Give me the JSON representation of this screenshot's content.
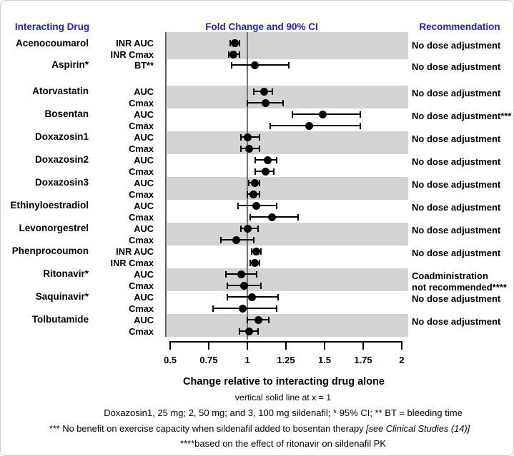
{
  "headers": {
    "interacting_drug": "Interacting Drug",
    "fold_change": "Fold Change and 90% CI",
    "recommendation": "Recommendation"
  },
  "chart_data": {
    "type": "forest",
    "title": "Fold Change and 90% CI",
    "ci_level": "90% CI",
    "x_axis": {
      "label": "Change relative to interacting drug alone",
      "ticks": [
        0.5,
        0.75,
        1,
        1.25,
        1.5,
        1.75,
        2
      ],
      "tick_labels": [
        "0.5",
        "0.75",
        "1",
        "1.25",
        "1.5",
        "1.75",
        "2"
      ],
      "range": [
        0.5,
        2
      ],
      "reference_line_x": 1
    },
    "groups": [
      {
        "drug": "Acenocoumarol",
        "shaded": true,
        "rec_lines": [
          "No dose adjustment"
        ],
        "rows": [
          {
            "param": "INR AUC",
            "value": 0.92,
            "ci_low": 0.89,
            "ci_high": 0.95
          },
          {
            "param": "INR Cmax",
            "value": 0.91,
            "ci_low": 0.88,
            "ci_high": 0.95
          }
        ]
      },
      {
        "drug": "Aspirin*",
        "shaded": false,
        "rec_lines": [
          "No dose adjustment"
        ],
        "rows": [
          {
            "param": "BT**",
            "value": 1.05,
            "ci_low": 0.9,
            "ci_high": 1.27
          }
        ]
      },
      {
        "drug": "Atorvastatin",
        "shaded": true,
        "rec_lines": [
          "No dose adjustment"
        ],
        "rows": [
          {
            "param": "AUC",
            "value": 1.11,
            "ci_low": 1.04,
            "ci_high": 1.16
          },
          {
            "param": "Cmax",
            "value": 1.12,
            "ci_low": 1.0,
            "ci_high": 1.23
          }
        ]
      },
      {
        "drug": "Bosentan",
        "shaded": false,
        "rec_lines": [
          "No dose adjustment***"
        ],
        "rows": [
          {
            "param": "AUC",
            "value": 1.49,
            "ci_low": 1.29,
            "ci_high": 1.73
          },
          {
            "param": "Cmax",
            "value": 1.4,
            "ci_low": 1.15,
            "ci_high": 1.73
          }
        ]
      },
      {
        "drug": "Doxazosin1",
        "shaded": true,
        "rec_lines": [
          "No dose adjustment"
        ],
        "rows": [
          {
            "param": "AUC",
            "value": 1.0,
            "ci_low": 0.96,
            "ci_high": 1.08
          },
          {
            "param": "Cmax",
            "value": 1.01,
            "ci_low": 0.96,
            "ci_high": 1.08
          }
        ]
      },
      {
        "drug": "Doxazosin2",
        "shaded": false,
        "rec_lines": [
          "No dose adjustment"
        ],
        "rows": [
          {
            "param": "AUC",
            "value": 1.13,
            "ci_low": 1.05,
            "ci_high": 1.19
          },
          {
            "param": "Cmax",
            "value": 1.12,
            "ci_low": 1.05,
            "ci_high": 1.17
          }
        ]
      },
      {
        "drug": "Doxazosin3",
        "shaded": true,
        "rec_lines": [
          "No dose adjustment"
        ],
        "rows": [
          {
            "param": "AUC",
            "value": 1.05,
            "ci_low": 1.01,
            "ci_high": 1.08
          },
          {
            "param": "Cmax",
            "value": 1.04,
            "ci_low": 1.0,
            "ci_high": 1.08
          }
        ]
      },
      {
        "drug": "Ethinyloestradiol",
        "shaded": false,
        "rec_lines": [
          "No dose adjustment"
        ],
        "rows": [
          {
            "param": "AUC",
            "value": 1.06,
            "ci_low": 0.94,
            "ci_high": 1.19
          },
          {
            "param": "Cmax",
            "value": 1.16,
            "ci_low": 1.02,
            "ci_high": 1.33
          }
        ]
      },
      {
        "drug": "Levonorgestrel",
        "shaded": true,
        "rec_lines": [
          "No dose adjustment"
        ],
        "rows": [
          {
            "param": "AUC",
            "value": 1.0,
            "ci_low": 0.96,
            "ci_high": 1.07
          },
          {
            "param": "Cmax",
            "value": 0.93,
            "ci_low": 0.83,
            "ci_high": 1.04
          }
        ]
      },
      {
        "drug": "Phenprocoumon",
        "shaded": false,
        "rec_lines": [
          "No dose adjustment"
        ],
        "rows": [
          {
            "param": "INR AUC",
            "value": 1.06,
            "ci_low": 1.03,
            "ci_high": 1.09
          },
          {
            "param": "INR Cmax",
            "value": 1.05,
            "ci_low": 1.02,
            "ci_high": 1.08
          }
        ]
      },
      {
        "drug": "Ritonavir*",
        "shaded": true,
        "rec_lines": [
          "Coadministration",
          "not recommended****"
        ],
        "rows": [
          {
            "param": "AUC",
            "value": 0.96,
            "ci_low": 0.86,
            "ci_high": 1.06
          },
          {
            "param": "Cmax",
            "value": 0.98,
            "ci_low": 0.87,
            "ci_high": 1.09
          }
        ]
      },
      {
        "drug": "Saquinavir*",
        "shaded": false,
        "rec_lines": [
          "No dose adjustment"
        ],
        "rows": [
          {
            "param": "AUC",
            "value": 1.03,
            "ci_low": 0.87,
            "ci_high": 1.2
          },
          {
            "param": "Cmax",
            "value": 0.97,
            "ci_low": 0.78,
            "ci_high": 1.19
          }
        ]
      },
      {
        "drug": "Tolbutamide",
        "shaded": true,
        "rec_lines": [
          "No dose adjustment"
        ],
        "rows": [
          {
            "param": "AUC",
            "value": 1.07,
            "ci_low": 1.0,
            "ci_high": 1.14
          },
          {
            "param": "Cmax",
            "value": 1.01,
            "ci_low": 0.95,
            "ci_high": 1.07
          }
        ]
      }
    ],
    "footnotes": [
      "vertical solid line at x = 1",
      "Doxazosin1, 25 mg; 2, 50 mg; and 3, 100 mg sildenafil; * 95% CI; ** BT = bleeding time",
      "*** No benefit on exercise capacity when sildenafil added to bosentan therapy  [see Clinical Studies (14)]",
      "****based on the effect of ritonavir on sildenafil PK"
    ]
  },
  "footnote_parts": {
    "line1": "vertical solid line at x = 1",
    "line2": "Doxazosin1, 25 mg; 2, 50 mg; and 3, 100 mg sildenafil; * 95% CI; ** BT = bleeding time",
    "line3_prefix": "*** No benefit on exercise capacity when sildenafil added to bosentan therapy  ",
    "line3_italic": "[see Clinical Studies (14)]",
    "line4": "****based on the effect of ritonavir on sildenafil PK"
  },
  "colors": {
    "header_blue": "#2020cc",
    "band_gray": "#d3d3d3",
    "marker_black": "#000000",
    "reference_line_gray": "#737373",
    "frame_line_gray": "#5d5d5d"
  }
}
